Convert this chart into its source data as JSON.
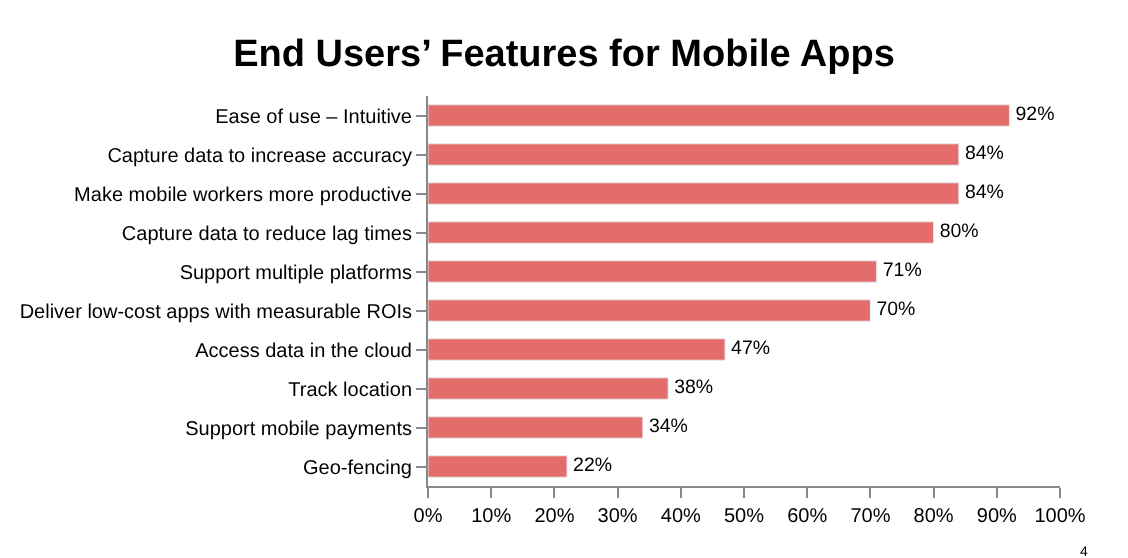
{
  "chart_data": {
    "type": "bar",
    "orientation": "horizontal",
    "title": "End Users’ Features for Mobile Apps",
    "categories": [
      "Ease of use – Intuitive",
      "Capture data to increase accuracy",
      "Make mobile workers more productive",
      "Capture data to reduce lag times",
      "Support multiple platforms",
      "Deliver low-cost apps with measurable ROIs",
      "Access data in the cloud",
      "Track location",
      "Support mobile payments",
      "Geo-fencing"
    ],
    "values": [
      92,
      84,
      84,
      80,
      71,
      70,
      47,
      38,
      34,
      22
    ],
    "value_labels": [
      "92%",
      "84%",
      "84%",
      "80%",
      "71%",
      "70%",
      "47%",
      "38%",
      "34%",
      "22%"
    ],
    "color": "#e46c6a",
    "xlim": [
      0,
      100
    ],
    "xticks": [
      {
        "value": 0,
        "label": "0%"
      },
      {
        "value": 10,
        "label": "10%"
      },
      {
        "value": 20,
        "label": "20%"
      },
      {
        "value": 30,
        "label": "30%"
      },
      {
        "value": 40,
        "label": "40%"
      },
      {
        "value": 50,
        "label": "50%"
      },
      {
        "value": 60,
        "label": "60%"
      },
      {
        "value": 70,
        "label": "70%"
      },
      {
        "value": 80,
        "label": "80%"
      },
      {
        "value": 90,
        "label": "90%"
      },
      {
        "value": 100,
        "label": "100%"
      }
    ],
    "annotations": [
      "4"
    ]
  }
}
